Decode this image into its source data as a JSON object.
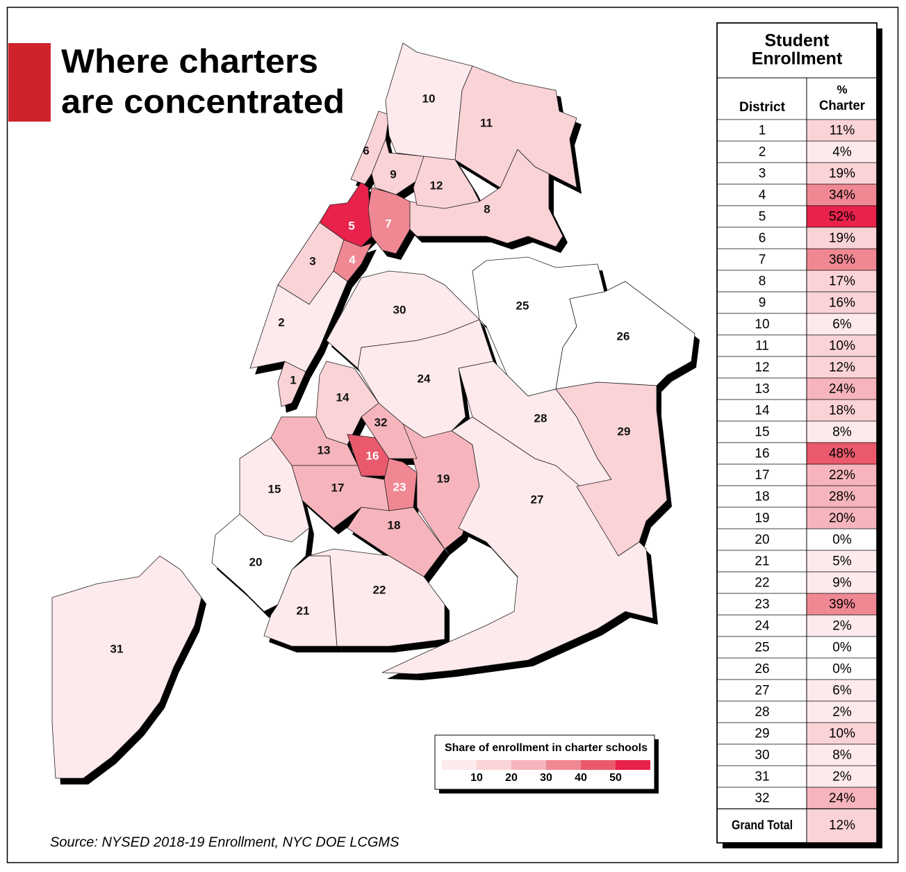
{
  "title": {
    "lines": [
      "Where charters",
      "are concentrated"
    ]
  },
  "source": "Source: NYSED 2018-19 Enrollment, NYC DOE LCGMS",
  "legend": {
    "title": "Share of enrollment in charter schools",
    "ticks": [
      10,
      20,
      30,
      40,
      50
    ],
    "colors": [
      "#fdeaec",
      "#fad3d7",
      "#f6b5bc",
      "#f08893",
      "#ea5a6c",
      "#e8224b"
    ]
  },
  "table": {
    "title": [
      "Student",
      "Enrollment"
    ],
    "columns": [
      [
        "District"
      ],
      [
        "%",
        "Charter"
      ]
    ],
    "rows": [
      [
        "1",
        "11%"
      ],
      [
        "2",
        "4%"
      ],
      [
        "3",
        "19%"
      ],
      [
        "4",
        "34%"
      ],
      [
        "5",
        "52%"
      ],
      [
        "6",
        "19%"
      ],
      [
        "7",
        "36%"
      ],
      [
        "8",
        "17%"
      ],
      [
        "9",
        "16%"
      ],
      [
        "10",
        "6%"
      ],
      [
        "11",
        "10%"
      ],
      [
        "12",
        "12%"
      ],
      [
        "13",
        "24%"
      ],
      [
        "14",
        "18%"
      ],
      [
        "15",
        "8%"
      ],
      [
        "16",
        "48%"
      ],
      [
        "17",
        "22%"
      ],
      [
        "18",
        "28%"
      ],
      [
        "19",
        "20%"
      ],
      [
        "20",
        "0%"
      ],
      [
        "21",
        "5%"
      ],
      [
        "22",
        "9%"
      ],
      [
        "23",
        "39%"
      ],
      [
        "24",
        "2%"
      ],
      [
        "25",
        "0%"
      ],
      [
        "26",
        "0%"
      ],
      [
        "27",
        "6%"
      ],
      [
        "28",
        "2%"
      ],
      [
        "29",
        "10%"
      ],
      [
        "30",
        "8%"
      ],
      [
        "31",
        "2%"
      ],
      [
        "32",
        "24%"
      ]
    ],
    "total": [
      "Grand Total",
      "12%"
    ]
  }
}
